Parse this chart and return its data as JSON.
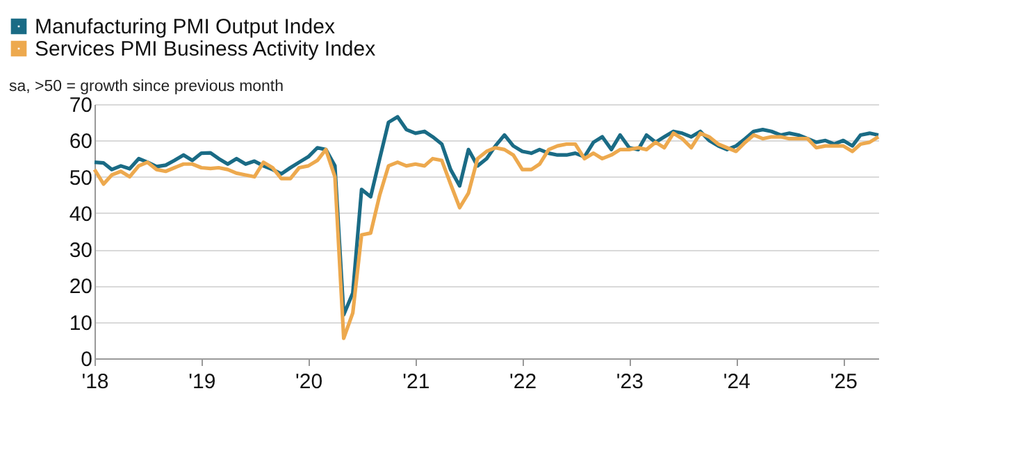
{
  "chart_data": {
    "type": "line",
    "ylabel": "sa, >50 = growth since previous month",
    "x": [
      "2018-01",
      "2018-02",
      "2018-03",
      "2018-04",
      "2018-05",
      "2018-06",
      "2018-07",
      "2018-08",
      "2018-09",
      "2018-10",
      "2018-11",
      "2018-12",
      "2019-01",
      "2019-02",
      "2019-03",
      "2019-04",
      "2019-05",
      "2019-06",
      "2019-07",
      "2019-08",
      "2019-09",
      "2019-10",
      "2019-11",
      "2019-12",
      "2020-01",
      "2020-02",
      "2020-03",
      "2020-04",
      "2020-05",
      "2020-06",
      "2020-07",
      "2020-08",
      "2020-09",
      "2020-10",
      "2020-11",
      "2020-12",
      "2021-01",
      "2021-02",
      "2021-03",
      "2021-04",
      "2021-05",
      "2021-06",
      "2021-07",
      "2021-08",
      "2021-09",
      "2021-10",
      "2021-11",
      "2021-12",
      "2022-01",
      "2022-02",
      "2022-03",
      "2022-04",
      "2022-05",
      "2022-06",
      "2022-07",
      "2022-08",
      "2022-09",
      "2022-10",
      "2022-11",
      "2022-12",
      "2023-01",
      "2023-02",
      "2023-03",
      "2023-04",
      "2023-05",
      "2023-06",
      "2023-07",
      "2023-08",
      "2023-09",
      "2023-10",
      "2023-11",
      "2023-12",
      "2024-01",
      "2024-02",
      "2024-03",
      "2024-04",
      "2024-05",
      "2024-06",
      "2024-07",
      "2024-08",
      "2024-09",
      "2024-10",
      "2024-11",
      "2024-12",
      "2025-01",
      "2025-02",
      "2025-03",
      "2025-04",
      "2025-05"
    ],
    "series": [
      {
        "name": "Manufacturing PMI Output Index",
        "color": "#1a6b85",
        "values": [
          54,
          53.8,
          52,
          53,
          52.2,
          55,
          54,
          52.8,
          53.2,
          54.5,
          56,
          54.5,
          56.5,
          56.6,
          55,
          53.5,
          55,
          53.5,
          54.3,
          53,
          52,
          50.8,
          52.5,
          54,
          55.5,
          58,
          57.5,
          53,
          12,
          18,
          46.5,
          44.5,
          55,
          65,
          66.5,
          63,
          62,
          62.5,
          61,
          59,
          52,
          47.5,
          57.5,
          53,
          55,
          58.5,
          61.5,
          58.5,
          57,
          56.5,
          57.5,
          56.5,
          56,
          56,
          56.5,
          55.5,
          59.5,
          61,
          57.5,
          61.5,
          58,
          57.5,
          61.5,
          59.5,
          61,
          62.5,
          62,
          61,
          62.5,
          60,
          58.5,
          57.5,
          58.5,
          60.5,
          62.5,
          63,
          62.5,
          61.5,
          62,
          61.5,
          60.5,
          59.5,
          60,
          59,
          60,
          58.5,
          61.5,
          62,
          61.5
        ]
      },
      {
        "name": "Services PMI Business Activity Index",
        "color": "#eda94e",
        "values": [
          52,
          48,
          50.5,
          51.5,
          50,
          53,
          54,
          52,
          51.5,
          52.5,
          53.5,
          53.5,
          52.5,
          52.3,
          52.5,
          52,
          51,
          50.5,
          50,
          54,
          52.5,
          49.5,
          49.5,
          52.5,
          53,
          54.5,
          57.5,
          50,
          5.5,
          12.5,
          34,
          34.5,
          45,
          53,
          54,
          53,
          53.5,
          53,
          55,
          54.5,
          48,
          41.5,
          45.5,
          55,
          57,
          58,
          57.5,
          56,
          52,
          52,
          53.5,
          57.5,
          58.5,
          59,
          59,
          55,
          56.5,
          55,
          56,
          57.5,
          57.5,
          58,
          57.5,
          59.5,
          58,
          62,
          60.5,
          58,
          62,
          61,
          59,
          58,
          57,
          59.5,
          61.5,
          60.5,
          61,
          61,
          60.5,
          60.5,
          60.5,
          58,
          58.5,
          58.5,
          58.5,
          57,
          59,
          59.5,
          61
        ]
      }
    ],
    "xlim": [
      "2018-01",
      "2025-05"
    ],
    "xticks": [
      {
        "value": "2018-01",
        "label": "'18"
      },
      {
        "value": "2019-01",
        "label": "'19"
      },
      {
        "value": "2020-01",
        "label": "'20"
      },
      {
        "value": "2021-01",
        "label": "'21"
      },
      {
        "value": "2022-01",
        "label": "'22"
      },
      {
        "value": "2023-01",
        "label": "'23"
      },
      {
        "value": "2024-01",
        "label": "'24"
      },
      {
        "value": "2025-01",
        "label": "'25"
      }
    ],
    "ylim": [
      0,
      70
    ],
    "yticks": [
      0,
      10,
      20,
      30,
      40,
      50,
      60,
      70
    ],
    "grid": "y",
    "legend": "top left",
    "line_style": "solid"
  }
}
